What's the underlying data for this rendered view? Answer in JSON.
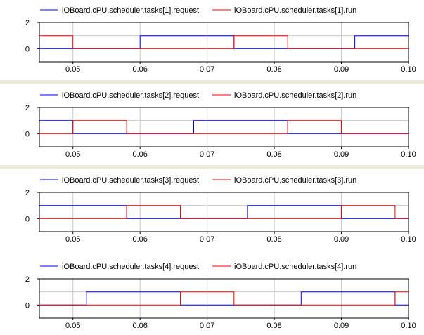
{
  "chart_data": [
    {
      "type": "line",
      "step": true,
      "xlim": [
        0.045,
        0.1
      ],
      "ylim": [
        -1,
        2
      ],
      "x_ticks": [
        "0.05",
        "0.06",
        "0.07",
        "0.08",
        "0.09",
        "0.10"
      ],
      "y_ticks": [
        "2",
        "0"
      ],
      "grid": true,
      "legend_position": "top",
      "series": [
        {
          "name": "iOBoard.cPU.scheduler.tasks[1].request",
          "color": "#0000ff",
          "points": [
            [
              0.045,
              0
            ],
            [
              0.06,
              0
            ],
            [
              0.06,
              1
            ],
            [
              0.074,
              1
            ],
            [
              0.074,
              0
            ],
            [
              0.092,
              0
            ],
            [
              0.092,
              1
            ],
            [
              0.1,
              1
            ]
          ]
        },
        {
          "name": "iOBoard.cPU.scheduler.tasks[1].run",
          "color": "#ff0000",
          "points": [
            [
              0.045,
              1
            ],
            [
              0.05,
              1
            ],
            [
              0.05,
              0
            ],
            [
              0.074,
              0
            ],
            [
              0.074,
              1
            ],
            [
              0.082,
              1
            ],
            [
              0.082,
              0
            ],
            [
              0.1,
              0
            ]
          ]
        }
      ]
    },
    {
      "type": "line",
      "step": true,
      "xlim": [
        0.045,
        0.1
      ],
      "ylim": [
        -1,
        2
      ],
      "x_ticks": [
        "0.05",
        "0.06",
        "0.07",
        "0.08",
        "0.09",
        "0.10"
      ],
      "y_ticks": [
        "2",
        "0"
      ],
      "grid": true,
      "legend_position": "top",
      "series": [
        {
          "name": "iOBoard.cPU.scheduler.tasks[2].request",
          "color": "#0000ff",
          "points": [
            [
              0.045,
              1
            ],
            [
              0.05,
              1
            ],
            [
              0.05,
              0
            ],
            [
              0.068,
              0
            ],
            [
              0.068,
              1
            ],
            [
              0.082,
              1
            ],
            [
              0.082,
              0
            ],
            [
              0.1,
              0
            ]
          ]
        },
        {
          "name": "iOBoard.cPU.scheduler.tasks[2].run",
          "color": "#ff0000",
          "points": [
            [
              0.045,
              0
            ],
            [
              0.05,
              0
            ],
            [
              0.05,
              1
            ],
            [
              0.058,
              1
            ],
            [
              0.058,
              0
            ],
            [
              0.082,
              0
            ],
            [
              0.082,
              1
            ],
            [
              0.09,
              1
            ],
            [
              0.09,
              0
            ],
            [
              0.1,
              0
            ]
          ]
        }
      ]
    },
    {
      "type": "line",
      "step": true,
      "xlim": [
        0.045,
        0.1
      ],
      "ylim": [
        -1,
        2
      ],
      "x_ticks": [
        "0.05",
        "0.06",
        "0.07",
        "0.08",
        "0.09",
        "0.10"
      ],
      "y_ticks": [
        "2",
        "0"
      ],
      "grid": true,
      "legend_position": "top",
      "series": [
        {
          "name": "iOBoard.cPU.scheduler.tasks[3].request",
          "color": "#0000ff",
          "points": [
            [
              0.045,
              1
            ],
            [
              0.058,
              1
            ],
            [
              0.058,
              0
            ],
            [
              0.076,
              0
            ],
            [
              0.076,
              1
            ],
            [
              0.09,
              1
            ],
            [
              0.09,
              0
            ],
            [
              0.1,
              0
            ]
          ]
        },
        {
          "name": "iOBoard.cPU.scheduler.tasks[3].run",
          "color": "#ff0000",
          "points": [
            [
              0.045,
              0
            ],
            [
              0.058,
              0
            ],
            [
              0.058,
              1
            ],
            [
              0.066,
              1
            ],
            [
              0.066,
              0
            ],
            [
              0.09,
              0
            ],
            [
              0.09,
              1
            ],
            [
              0.098,
              1
            ],
            [
              0.098,
              0
            ],
            [
              0.1,
              0
            ]
          ]
        }
      ]
    },
    {
      "type": "line",
      "step": true,
      "xlim": [
        0.045,
        0.1
      ],
      "ylim": [
        -1,
        2
      ],
      "x_ticks": [
        "0.05",
        "0.06",
        "0.07",
        "0.08",
        "0.09",
        "0.10"
      ],
      "y_ticks": [
        "2",
        "0"
      ],
      "grid": true,
      "legend_position": "top",
      "series": [
        {
          "name": "iOBoard.cPU.scheduler.tasks[4].request",
          "color": "#0000ff",
          "points": [
            [
              0.045,
              0
            ],
            [
              0.052,
              0
            ],
            [
              0.052,
              1
            ],
            [
              0.066,
              1
            ],
            [
              0.066,
              0
            ],
            [
              0.084,
              0
            ],
            [
              0.084,
              1
            ],
            [
              0.098,
              1
            ],
            [
              0.098,
              0
            ],
            [
              0.1,
              0
            ]
          ]
        },
        {
          "name": "iOBoard.cPU.scheduler.tasks[4].run",
          "color": "#ff0000",
          "points": [
            [
              0.045,
              0
            ],
            [
              0.066,
              0
            ],
            [
              0.066,
              1
            ],
            [
              0.074,
              1
            ],
            [
              0.074,
              0
            ],
            [
              0.098,
              0
            ],
            [
              0.098,
              1
            ],
            [
              0.1,
              1
            ]
          ]
        }
      ]
    }
  ]
}
